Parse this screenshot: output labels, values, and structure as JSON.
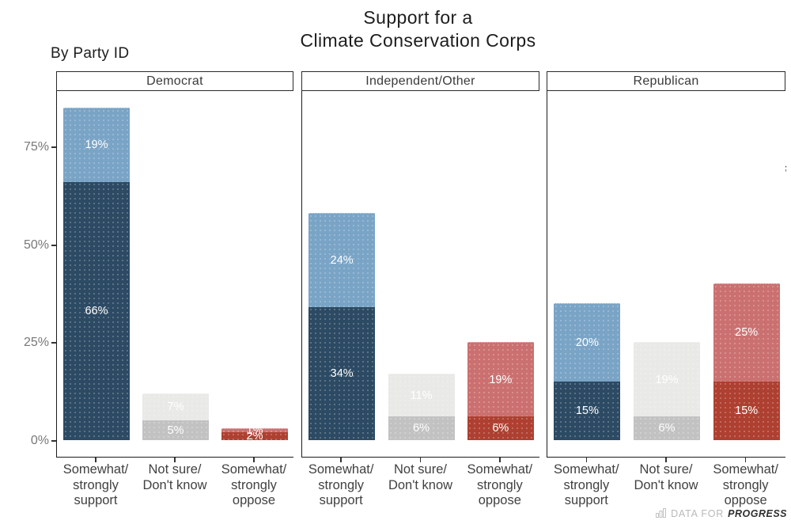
{
  "title": {
    "line1": "Support for a",
    "line2": "Climate Conservation Corps"
  },
  "subtitle": "By Party ID",
  "watermark": {
    "icon": "bar-chart-icon",
    "data_for": "DATA FOR",
    "progress": "PROGRESS"
  },
  "colors": {
    "support_bottom": "#2C4A63",
    "support_top": "#7AA4C6",
    "not_sure_bottom": "#C2C2C2",
    "not_sure_top": "#E9E9E7",
    "oppose_bottom": "#AE4031",
    "oppose_top": "#CB7070",
    "axis_line": "#1c1c1c",
    "y_label_text": "#787878",
    "x_label_text": "#414141"
  },
  "chart_data": {
    "type": "bar",
    "stacked": true,
    "title": "Support for a Climate Conservation Corps",
    "subtitle": "By Party ID",
    "ylim": [
      0,
      100
    ],
    "y_ticks": [
      "0%",
      "25%",
      "50%",
      "75%"
    ],
    "grid": false,
    "legend": "none",
    "value_label_suffix": "%",
    "categories": [
      {
        "key": "support",
        "label_lines": [
          "Somewhat/",
          "strongly",
          "support"
        ]
      },
      {
        "key": "not_sure",
        "label_lines": [
          "Not sure/",
          "Don't know"
        ]
      },
      {
        "key": "oppose",
        "label_lines": [
          "Somewhat/",
          "strongly",
          "oppose"
        ]
      }
    ],
    "facets": [
      {
        "label": "Democrat",
        "values": {
          "support": {
            "bottom": 66,
            "top": 19
          },
          "not_sure": {
            "bottom": 5,
            "top": 7
          },
          "oppose": {
            "bottom": 2,
            "top": 1
          }
        }
      },
      {
        "label": "Independent/Other",
        "values": {
          "support": {
            "bottom": 34,
            "top": 24
          },
          "not_sure": {
            "bottom": 6,
            "top": 11
          },
          "oppose": {
            "bottom": 6,
            "top": 19
          }
        }
      },
      {
        "label": "Republican",
        "values": {
          "support": {
            "bottom": 15,
            "top": 20
          },
          "not_sure": {
            "bottom": 6,
            "top": 19
          },
          "oppose": {
            "bottom": 15,
            "top": 25
          }
        }
      }
    ]
  }
}
